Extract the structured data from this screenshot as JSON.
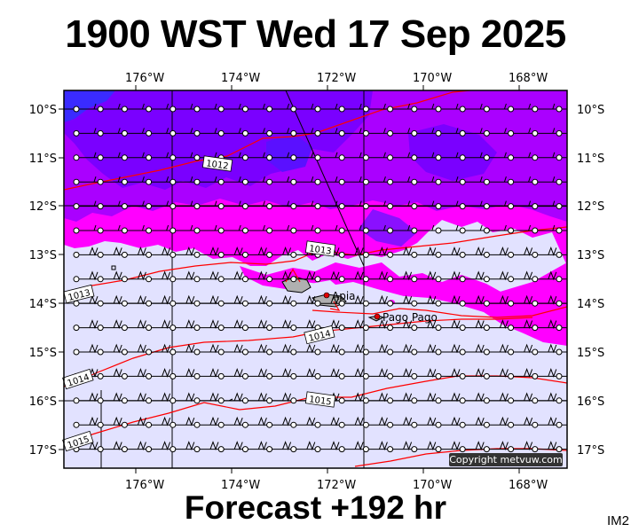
{
  "header": {
    "title": "1900 WST Wed 17 Sep 2025"
  },
  "footer": {
    "forecast": "Forecast +192 hr",
    "image_id": "IM2"
  },
  "axes": {
    "top_lon_labels": [
      "176°W",
      "174°W",
      "172°W",
      "170°W",
      "168°W"
    ],
    "bottom_lon_labels": [
      "176°W",
      "174°W",
      "172°W",
      "170°W",
      "168°W"
    ],
    "left_lat_labels": [
      "10°S",
      "11°S",
      "12°S",
      "13°S",
      "14°S",
      "15°S",
      "16°S",
      "17°S"
    ],
    "right_lat_labels": [
      "10°S",
      "11°S",
      "12°S",
      "13°S",
      "14°S",
      "15°S",
      "16°S",
      "17°S"
    ],
    "lon_range": [
      -177.3,
      -166.8
    ],
    "lat_range": [
      -17.35,
      -9.65
    ]
  },
  "isobars": {
    "labels": [
      "1012",
      "1013",
      "1013",
      "1014",
      "1014",
      "1015",
      "1015"
    ],
    "color": "#ff0000"
  },
  "places": {
    "apia": "Apia",
    "pago_pago": "Pago Pago"
  },
  "colors": {
    "light_fill": "#e2e2ff",
    "magenta": "#ff00ff",
    "violet": "#aa00ff",
    "purple": "#7a00ff",
    "blue": "#3a2bff",
    "grid": "#000000",
    "isobar": "#ff0000",
    "land": "#b0b0b0"
  },
  "copyright": "Copyright metvuw.com"
}
